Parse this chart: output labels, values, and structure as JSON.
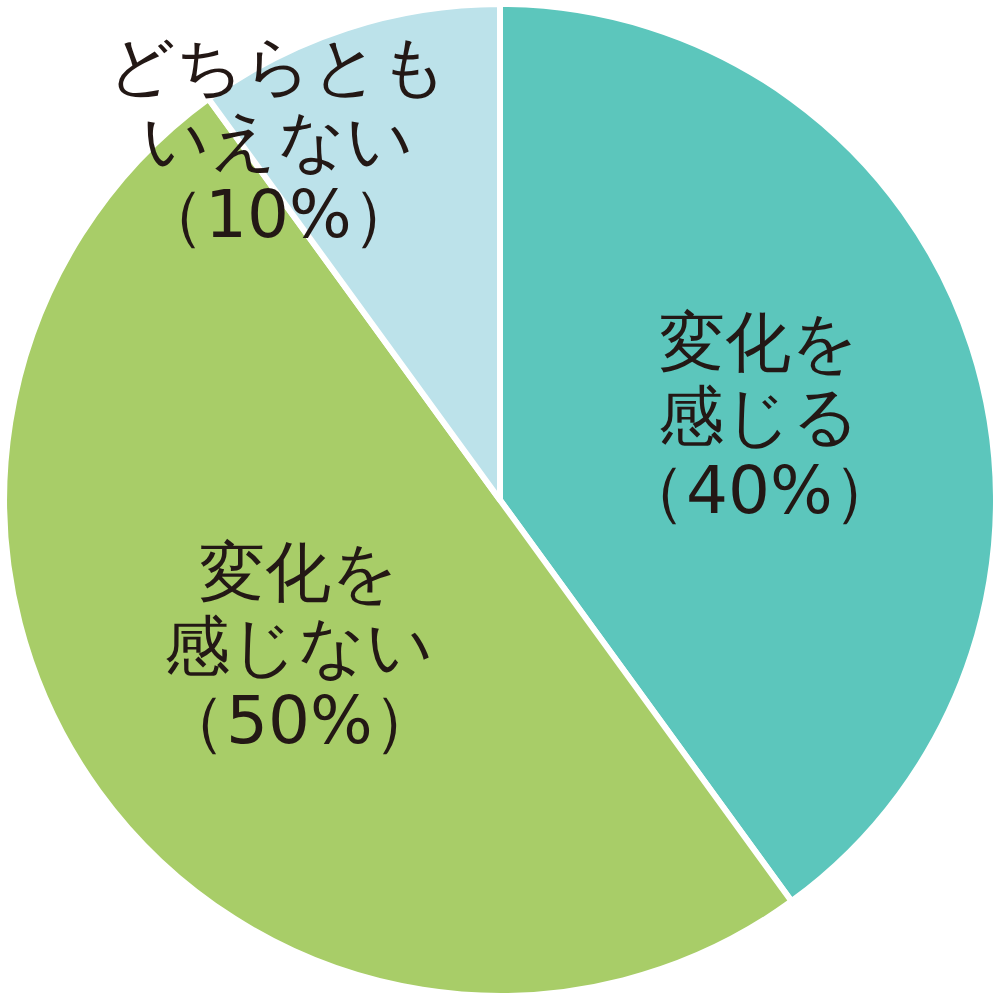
{
  "chart_data": {
    "type": "pie",
    "categories": [
      "変化を感じる",
      "変化を感じない",
      "どちらともいえない"
    ],
    "values": [
      40,
      50,
      10
    ],
    "value_labels": [
      "（40%）",
      "（50%）",
      "（10%）"
    ],
    "colors": [
      "#5cc6bc",
      "#a8cd68",
      "#bce2ea"
    ]
  }
}
